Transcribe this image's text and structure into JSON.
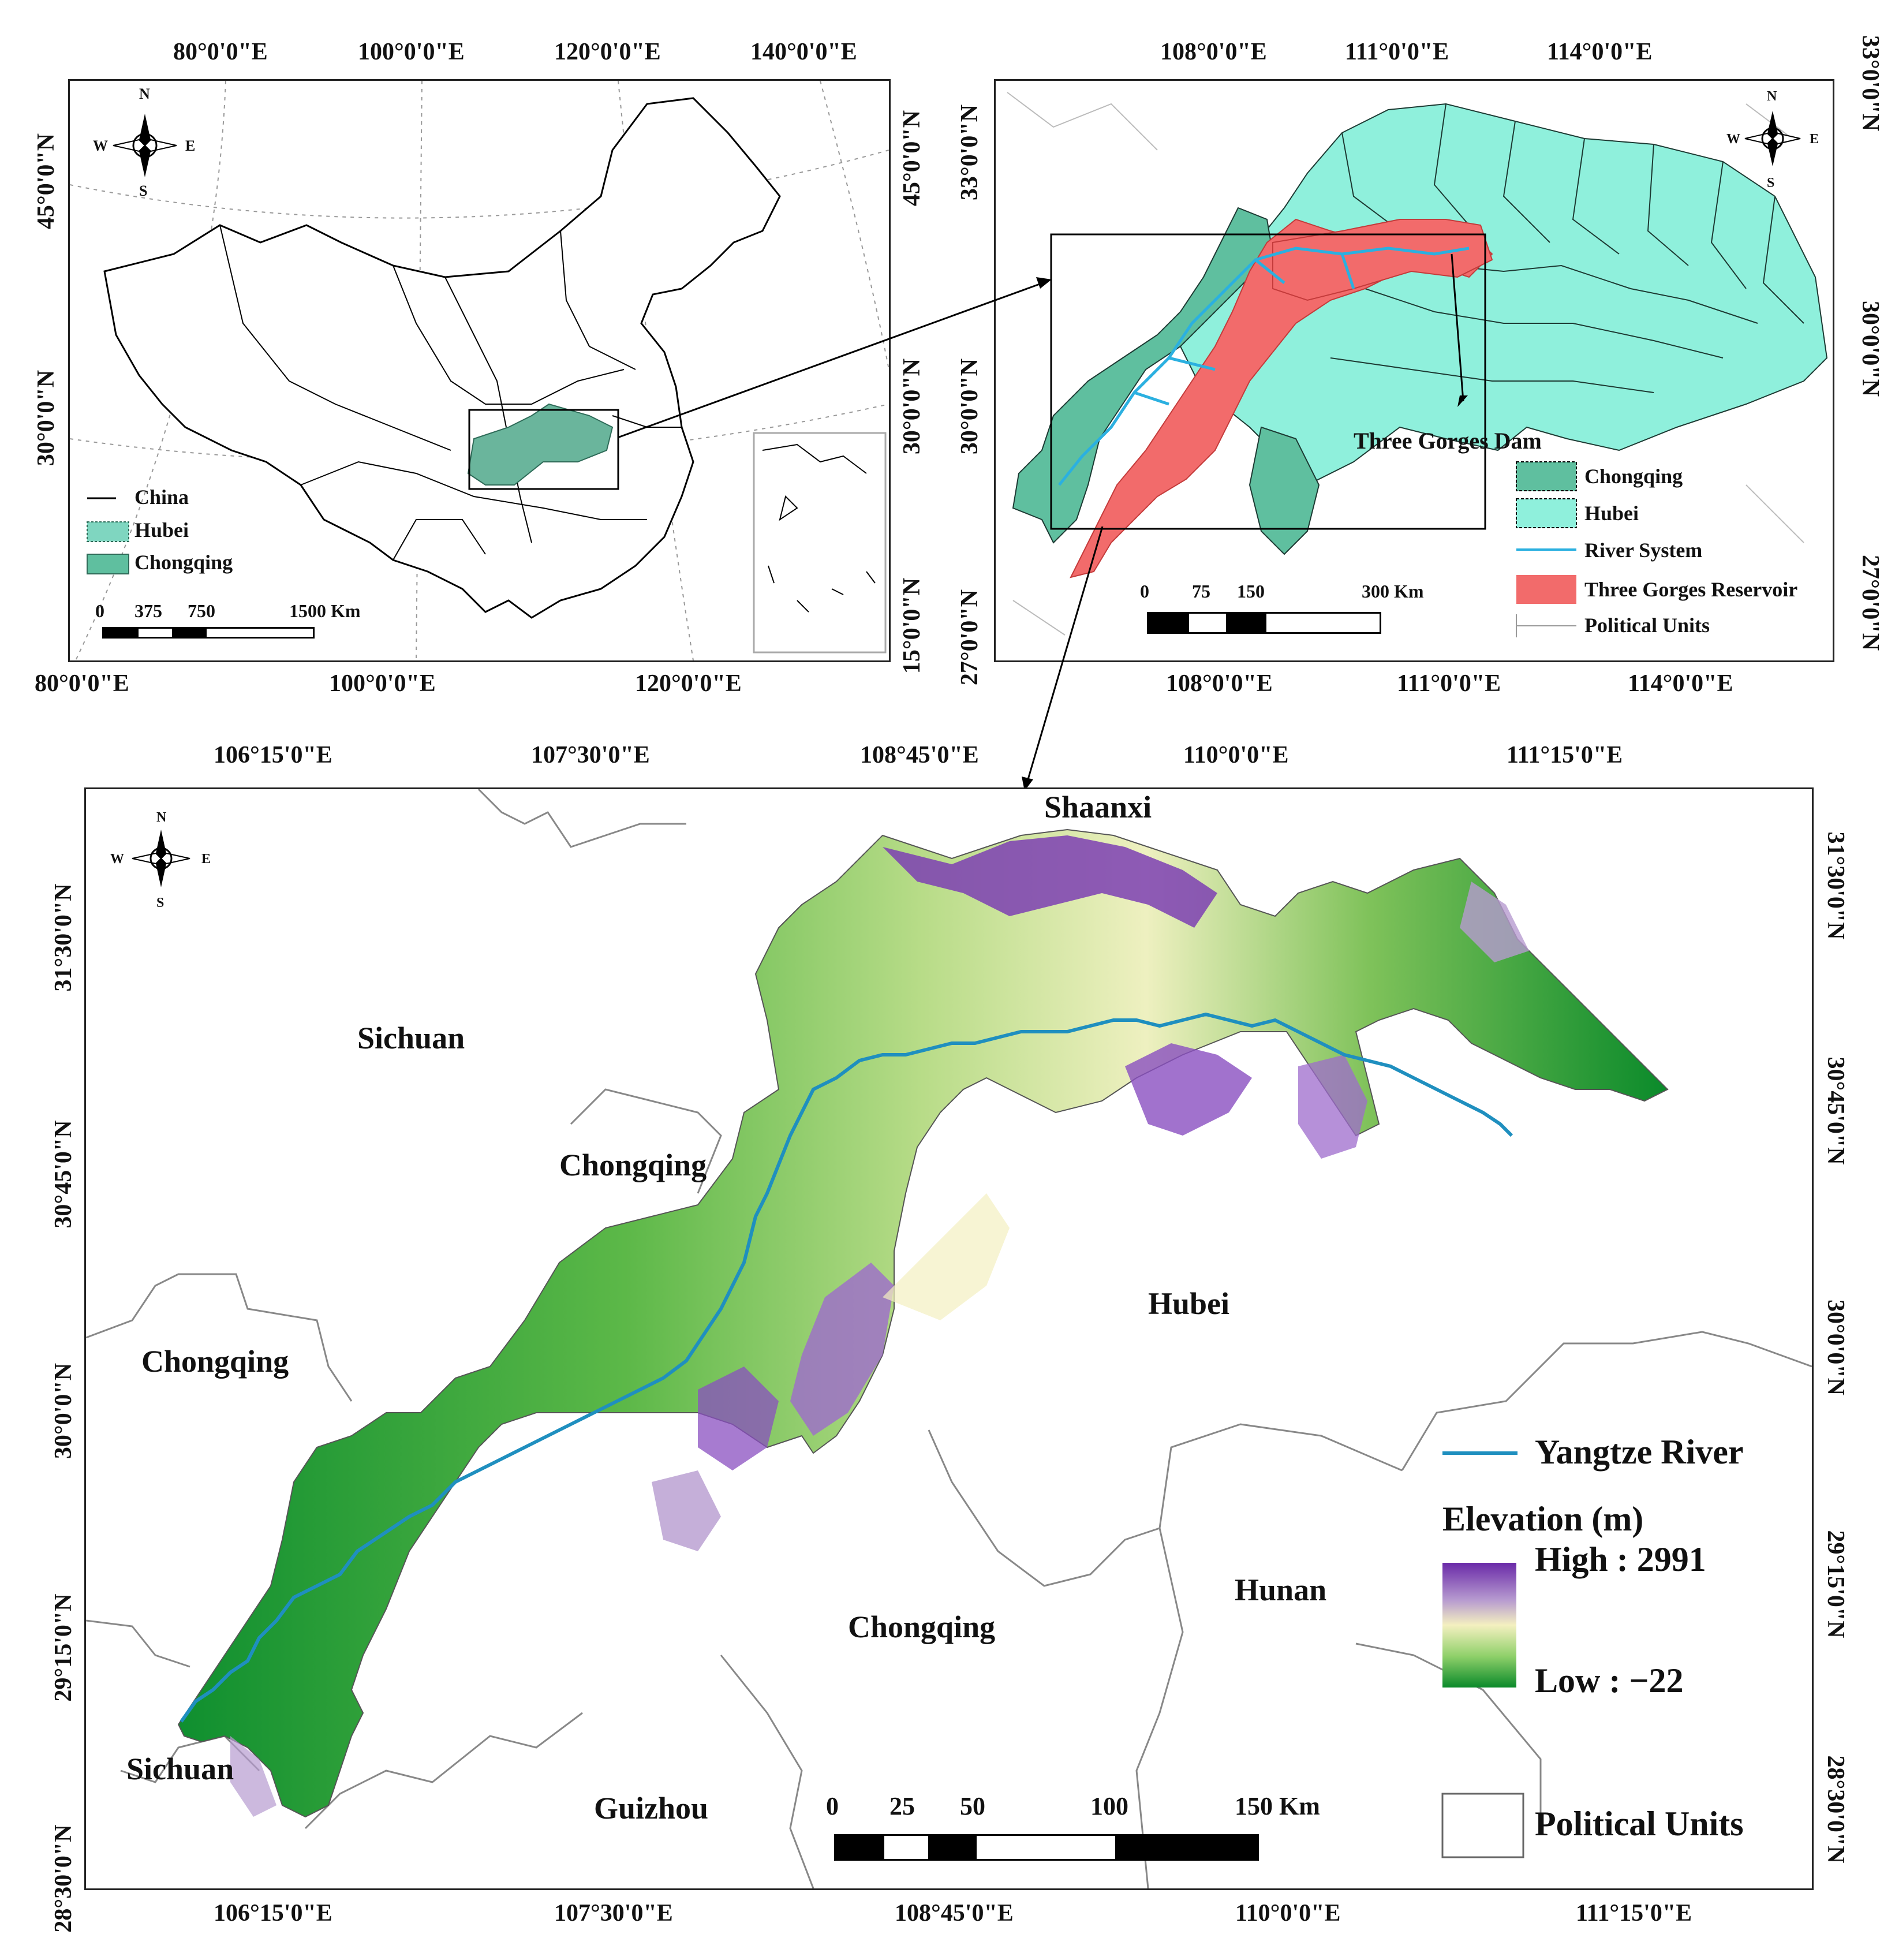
{
  "map1": {
    "top_ticks": [
      "80°0'0\"E",
      "100°0'0\"E",
      "120°0'0\"E",
      "140°0'0\"E"
    ],
    "bottom_ticks": [
      "80°0'0\"E",
      "100°0'0\"E",
      "120°0'0\"E"
    ],
    "left_ticks": [
      "45°0'0\"N",
      "30°0'0\"N"
    ],
    "right_ticks": [
      "45°0'0\"N",
      "30°0'0\"N",
      "15°0'0\"N"
    ],
    "compass": {
      "n": "N",
      "s": "S",
      "e": "E",
      "w": "W"
    },
    "legend": [
      {
        "label": "China",
        "symbol": "line",
        "color": "#000000"
      },
      {
        "label": "Hubei",
        "symbol": "patch",
        "color": "#7fd6c0"
      },
      {
        "label": "Chongqing",
        "symbol": "patch",
        "color": "#5fbf9f"
      }
    ],
    "scale": {
      "labels": [
        "0",
        "375",
        "750",
        "1500 Km"
      ]
    }
  },
  "map2": {
    "top_ticks": [
      "108°0'0\"E",
      "111°0'0\"E",
      "114°0'0\"E"
    ],
    "bottom_ticks": [
      "108°0'0\"E",
      "111°0'0\"E",
      "114°0'0\"E"
    ],
    "left_ticks": [
      "33°0'0\"N",
      "30°0'0\"N",
      "27°0'0\"N"
    ],
    "right_ticks": [
      "33°0'0\"N",
      "30°0'0\"N",
      "27°0'0\"N"
    ],
    "compass": {
      "n": "N",
      "s": "S",
      "e": "E",
      "w": "W"
    },
    "dam_label": "Three Gorges Dam",
    "legend": [
      {
        "label": "Chongqing",
        "symbol": "patch",
        "color": "#5fbf9f"
      },
      {
        "label": "Hubei",
        "symbol": "patch",
        "color": "#8ff0dc"
      },
      {
        "label": "River System",
        "symbol": "line",
        "color": "#2bb0e0"
      },
      {
        "label": "Three Gorges Reservoir",
        "symbol": "patch",
        "color": "#f26b6b"
      },
      {
        "label": "Political Units",
        "symbol": "line",
        "color": "#999999"
      }
    ],
    "scale": {
      "labels": [
        "0",
        "75",
        "150",
        "300 Km"
      ]
    }
  },
  "map3": {
    "top_ticks": [
      "106°15'0\"E",
      "107°30'0\"E",
      "108°45'0\"E",
      "110°0'0\"E",
      "111°15'0\"E"
    ],
    "bottom_ticks": [
      "106°15'0\"E",
      "107°30'0\"E",
      "108°45'0\"E",
      "110°0'0\"E",
      "111°15'0\"E"
    ],
    "left_ticks": [
      "31°30'0\"N",
      "30°45'0\"N",
      "30°0'0\"N",
      "29°15'0\"N",
      "28°30'0\"N"
    ],
    "right_ticks": [
      "31°30'0\"N",
      "30°45'0\"N",
      "30°0'0\"N",
      "29°15'0\"N",
      "28°30'0\"N"
    ],
    "compass": {
      "n": "N",
      "s": "S",
      "e": "E",
      "w": "W"
    },
    "places": {
      "shaanxi": "Shaanxi",
      "sichuan_n": "Sichuan",
      "chongqing_c": "Chongqing",
      "chongqing_w": "Chongqing",
      "hubei": "Hubei",
      "hunan": "Hunan",
      "chongqing_s": "Chongqing",
      "sichuan_s": "Sichuan",
      "guizhou": "Guizhou"
    },
    "legend": {
      "river": "Yangtze River",
      "river_color": "#1f8fbf",
      "elevation_title": "Elevation (m)",
      "high": "High : 2991",
      "low": "Low : −22",
      "ramp_colors": [
        "#6a2aa8",
        "#b79bd0",
        "#f4f0c0",
        "#8fd06a",
        "#0a8a2a"
      ],
      "political": "Political Units"
    },
    "scale": {
      "labels": [
        "0",
        "25",
        "50",
        "100",
        "150 Km"
      ]
    }
  }
}
